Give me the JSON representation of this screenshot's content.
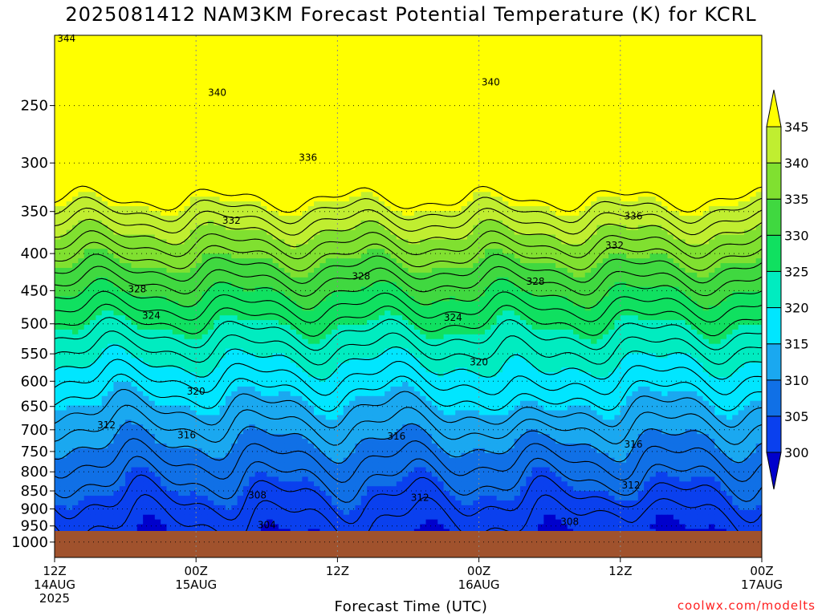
{
  "title": "2025081412 NAM3KM Forecast Potential Temperature (K) for KCRL",
  "credit": "coolwx.com/modelts",
  "chart_data": {
    "type": "heatmap",
    "title": "2025081412 NAM3KM Forecast Potential Temperature (K) for KCRL",
    "xlabel": "Forecast Time (UTC)",
    "ylabel": "",
    "x_ticks": [
      {
        "hour": 0,
        "lines": [
          "12Z",
          "14AUG",
          "2025"
        ]
      },
      {
        "hour": 12,
        "lines": [
          "00Z",
          "15AUG"
        ]
      },
      {
        "hour": 24,
        "lines": [
          "12Z"
        ]
      },
      {
        "hour": 36,
        "lines": [
          "00Z",
          "16AUG"
        ]
      },
      {
        "hour": 48,
        "lines": [
          "12Z"
        ]
      },
      {
        "hour": 60,
        "lines": [
          "00Z",
          "17AUG"
        ]
      }
    ],
    "xlim_hours": [
      0,
      60
    ],
    "y_ticks": [
      250,
      300,
      350,
      400,
      450,
      500,
      550,
      600,
      650,
      700,
      750,
      800,
      850,
      900,
      950,
      1000
    ],
    "ylim_hpa": [
      200,
      1050
    ],
    "y_scale": "log",
    "grid": true,
    "colorbar": {
      "levels": [
        300,
        305,
        310,
        315,
        320,
        325,
        330,
        335,
        340,
        345
      ],
      "labels": [
        "300",
        "305",
        "310",
        "315",
        "320",
        "325",
        "330",
        "335",
        "340",
        "345"
      ],
      "colors": [
        "#0000cc",
        "#0a40ee",
        "#1070e6",
        "#1aa8f0",
        "#00e6ff",
        "#00ecc0",
        "#10e060",
        "#40d840",
        "#80e030",
        "#c0ee30",
        "#ffff00"
      ],
      "extend": "both"
    },
    "contour_interval": 2,
    "contour_labels": [
      {
        "value": "344",
        "hour": 1.0,
        "hpa": 202
      },
      {
        "value": "340",
        "hour": 13.8,
        "hpa": 240
      },
      {
        "value": "340",
        "hour": 37.0,
        "hpa": 232
      },
      {
        "value": "336",
        "hour": 21.5,
        "hpa": 295
      },
      {
        "value": "336",
        "hour": 49.1,
        "hpa": 355
      },
      {
        "value": "332",
        "hour": 15.0,
        "hpa": 360
      },
      {
        "value": "332",
        "hour": 47.5,
        "hpa": 390
      },
      {
        "value": "328",
        "hour": 7.0,
        "hpa": 448
      },
      {
        "value": "328",
        "hour": 26.0,
        "hpa": 430
      },
      {
        "value": "328",
        "hour": 40.8,
        "hpa": 437
      },
      {
        "value": "324",
        "hour": 8.2,
        "hpa": 487
      },
      {
        "value": "324",
        "hour": 33.8,
        "hpa": 490
      },
      {
        "value": "320",
        "hour": 12.0,
        "hpa": 620
      },
      {
        "value": "320",
        "hour": 36.0,
        "hpa": 565
      },
      {
        "value": "316",
        "hour": 11.2,
        "hpa": 712
      },
      {
        "value": "316",
        "hour": 29.0,
        "hpa": 715
      },
      {
        "value": "316",
        "hour": 49.1,
        "hpa": 733
      },
      {
        "value": "312",
        "hour": 4.4,
        "hpa": 690
      },
      {
        "value": "312",
        "hour": 31.0,
        "hpa": 868
      },
      {
        "value": "312",
        "hour": 48.9,
        "hpa": 835
      },
      {
        "value": "308",
        "hour": 17.2,
        "hpa": 862
      },
      {
        "value": "308",
        "hour": 43.7,
        "hpa": 937
      },
      {
        "value": "304",
        "hour": 18.0,
        "hpa": 947
      }
    ],
    "terrain_hpa": 965
  }
}
